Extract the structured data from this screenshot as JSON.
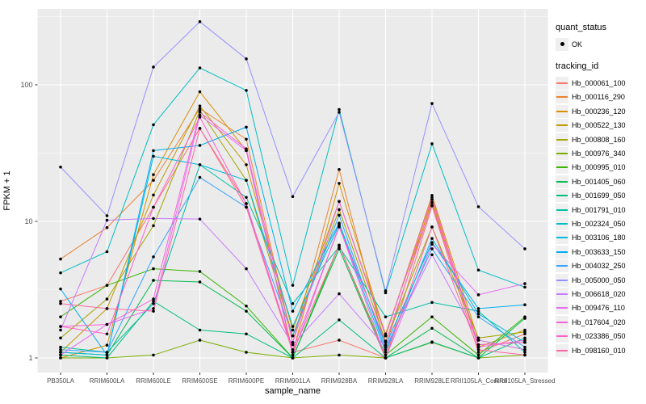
{
  "figure": {
    "background": "#FFFFFF",
    "panel_background": "#EBEBEB",
    "grid_major_color": "#FFFFFF",
    "grid_minor_color": "#FFFFFF",
    "tick_label_color": "#4D4D4D",
    "point_color": "#000000"
  },
  "legend": {
    "quant_status_title": "quant_status",
    "quant_status_items": [
      {
        "label": "OK",
        "marker": "black-point"
      }
    ],
    "tracking_id_title": "tracking_id"
  },
  "chart_data": {
    "type": "line",
    "title": "",
    "xlabel": "sample_name",
    "ylabel": "FPKM + 1",
    "y_scale": "log10",
    "ylim": [
      0.78,
      360
    ],
    "y_ticks": [
      1,
      10,
      100
    ],
    "grid": "on",
    "legend_position": "right",
    "marker": "black point (quant_status OK) at every vertex",
    "categories": [
      "PB350LA",
      "RRIM600LA",
      "RRIM600LE",
      "RRIM600SE",
      "RRIM600PE",
      "RRIM901LA",
      "RRIM928BA",
      "RRIM928LA",
      "RRIM928LE",
      "RRII105LA_Control",
      "RRII105LA_Stressed"
    ],
    "series": [
      {
        "name": "Hb_000061_100",
        "color": "#F8766D",
        "values": [
          2.6,
          3.4,
          12.7,
          48,
          13.5,
          1.1,
          1.35,
          1.0,
          13.0,
          1.1,
          1.5
        ]
      },
      {
        "name": "Hb_000116_290",
        "color": "#EA8331",
        "values": [
          5.3,
          9.0,
          20,
          67,
          40,
          1.3,
          24,
          1.2,
          14.5,
          1.25,
          1.3
        ]
      },
      {
        "name": "Hb_000236_120",
        "color": "#D89000",
        "values": [
          1.0,
          1.24,
          22,
          89,
          33,
          1.1,
          19,
          1.45,
          15.5,
          1.35,
          1.15
        ]
      },
      {
        "name": "Hb_000522_130",
        "color": "#C09B00",
        "values": [
          1.1,
          2.3,
          15.6,
          70,
          26,
          1.6,
          14,
          1.5,
          13.8,
          1.2,
          1.6
        ]
      },
      {
        "name": "Hb_000808_160",
        "color": "#A3A500",
        "values": [
          1.4,
          2.7,
          9.3,
          65,
          20,
          1.45,
          12.2,
          1.33,
          9.1,
          1.4,
          1.55
        ]
      },
      {
        "name": "Hb_000976_340",
        "color": "#7CAE00",
        "values": [
          1.0,
          1.0,
          1.05,
          1.35,
          1.1,
          1.0,
          1.05,
          1.0,
          1.3,
          1.0,
          1.05
        ]
      },
      {
        "name": "Hb_000995_010",
        "color": "#39B600",
        "values": [
          2.0,
          3.4,
          4.5,
          4.3,
          2.4,
          1.0,
          6.7,
          1.05,
          2.0,
          1.05,
          2.0
        ]
      },
      {
        "name": "Hb_001405_060",
        "color": "#00BB4E",
        "values": [
          1.1,
          1.05,
          3.7,
          3.6,
          2.2,
          1.0,
          6.3,
          1.0,
          1.65,
          1.0,
          1.95
        ]
      },
      {
        "name": "Hb_001699_050",
        "color": "#00BF7D",
        "values": [
          1.05,
          1.0,
          2.6,
          1.6,
          1.5,
          1.0,
          1.9,
          1.0,
          1.31,
          1.0,
          1.4
        ]
      },
      {
        "name": "Hb_001791_010",
        "color": "#00C1A3",
        "values": [
          1.2,
          1.1,
          2.5,
          26,
          15,
          2.5,
          6.5,
          2.0,
          2.55,
          2.2,
          1.1
        ]
      },
      {
        "name": "Hb_002324_050",
        "color": "#00BFC4",
        "values": [
          4.2,
          6.0,
          51,
          133,
          91,
          3.4,
          66,
          3.0,
          37,
          4.4,
          3.3
        ]
      },
      {
        "name": "Hb_003106_180",
        "color": "#00BAE0",
        "values": [
          1.1,
          1.05,
          30,
          26,
          20,
          1.7,
          9.5,
          1.1,
          7.5,
          2.1,
          1.3
        ]
      },
      {
        "name": "Hb_003633_150",
        "color": "#00B0F6",
        "values": [
          3.2,
          1.05,
          33,
          36,
          49,
          2.2,
          9.7,
          1.24,
          7.0,
          2.3,
          2.45
        ]
      },
      {
        "name": "Hb_004032_250",
        "color": "#35A2FF",
        "values": [
          1.15,
          1.1,
          5.5,
          21,
          12.7,
          1.45,
          11.1,
          1.15,
          6.3,
          2.0,
          1.2
        ]
      },
      {
        "name": "Hb_005000_050",
        "color": "#9590FF",
        "values": [
          25,
          11,
          135,
          290,
          155,
          15.2,
          63,
          3.1,
          73,
          12.8,
          6.3
        ]
      },
      {
        "name": "Hb_006618_020",
        "color": "#C77CFF",
        "values": [
          1.6,
          10.2,
          10.5,
          10.4,
          4.5,
          1.25,
          2.95,
          1.2,
          5.7,
          1.35,
          1.15
        ]
      },
      {
        "name": "Hb_009476_110",
        "color": "#E76BF3",
        "values": [
          1.05,
          1.76,
          2.3,
          60,
          33,
          1.05,
          9.3,
          1.0,
          6.8,
          2.9,
          3.5
        ]
      },
      {
        "name": "Hb_017604_020",
        "color": "#FA62DB",
        "values": [
          1.7,
          1.76,
          2.7,
          63,
          34,
          1.3,
          14,
          1.45,
          15.0,
          1.2,
          1.35
        ]
      },
      {
        "name": "Hb_023386_050",
        "color": "#FF61CC",
        "values": [
          1.7,
          1.5,
          12.7,
          58,
          13.5,
          1.15,
          9.1,
          1.3,
          13.2,
          1.25,
          1.3
        ]
      },
      {
        "name": "Hb_098160_010",
        "color": "#FF67A4",
        "values": [
          2.5,
          2.3,
          2.2,
          48,
          12.7,
          1.1,
          6.7,
          1.0,
          9.1,
          1.15,
          1.05
        ]
      }
    ]
  }
}
